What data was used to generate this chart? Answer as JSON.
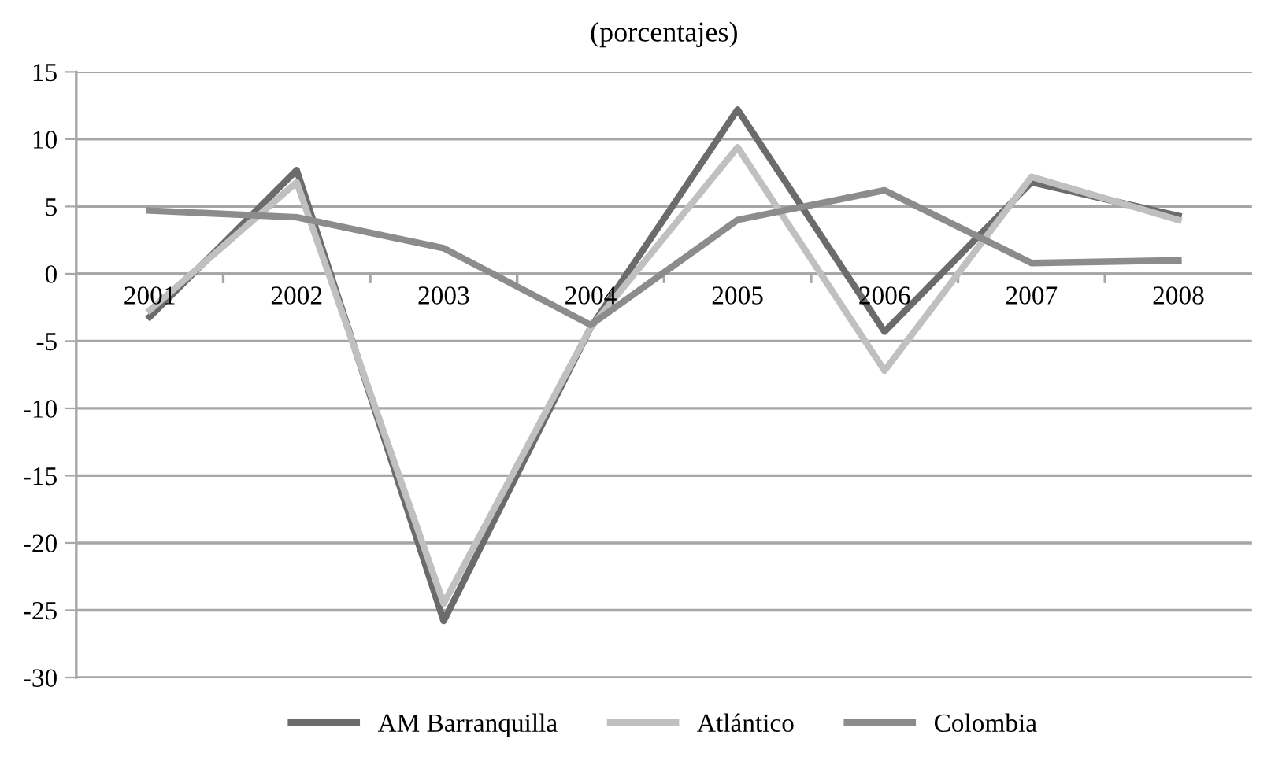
{
  "chart_data": {
    "type": "line",
    "title": "(porcentajes)",
    "categories": [
      "2001",
      "2002",
      "2003",
      "2004",
      "2005",
      "2006",
      "2007",
      "2008"
    ],
    "series": [
      {
        "name": "AM Barranquilla",
        "color": "#6b6b6b",
        "values": [
          -3.2,
          7.7,
          -25.8,
          -4.0,
          12.2,
          -4.3,
          6.8,
          4.3
        ]
      },
      {
        "name": "Atlántico",
        "color": "#c0c0c0",
        "values": [
          -2.7,
          6.8,
          -24.5,
          -4.0,
          9.4,
          -7.2,
          7.2,
          4.0
        ]
      },
      {
        "name": "Colombia",
        "color": "#8c8c8c",
        "values": [
          4.7,
          4.2,
          1.9,
          -3.8,
          4.0,
          6.2,
          0.8,
          1.0
        ]
      }
    ],
    "ylim": [
      -30,
      15
    ],
    "yticks": [
      -30,
      -25,
      -20,
      -15,
      -10,
      -5,
      0,
      5,
      10,
      15
    ],
    "grid": "y",
    "legend": "bottom",
    "marker": "none",
    "line_style": "solid"
  }
}
